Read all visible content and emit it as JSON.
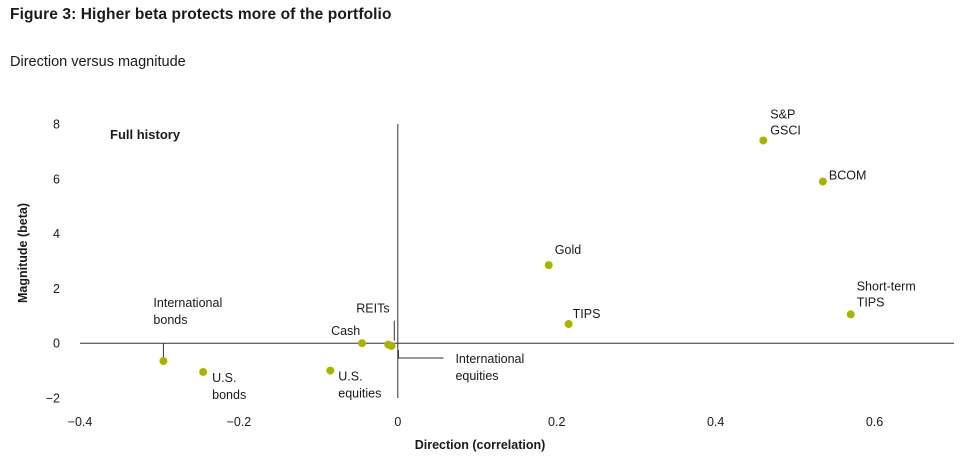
{
  "figure": {
    "title": "Figure 3: Higher beta protects more of the portfolio",
    "subtitle": "Direction versus magnitude"
  },
  "chart_data": {
    "type": "scatter",
    "panel_label": "Full history",
    "xlabel": "Direction (correlation)",
    "ylabel": "Magnitude (beta)",
    "xlim": [
      -0.4,
      0.7
    ],
    "ylim": [
      -2,
      8
    ],
    "xticks": [
      -0.4,
      -0.2,
      0,
      0.2,
      0.4,
      0.6
    ],
    "xtick_labels": [
      "−0.4",
      "−0.2",
      "0",
      "0.2",
      "0.4",
      "0.6"
    ],
    "yticks": [
      -2,
      0,
      2,
      4,
      6,
      8
    ],
    "ytick_labels": [
      "−2",
      "0",
      "2",
      "4",
      "6",
      "8"
    ],
    "point_color": "#a8b400",
    "points": [
      {
        "lines": [
          "S&P",
          "GSCI"
        ],
        "x": 0.46,
        "y": 7.4
      },
      {
        "lines": [
          "BCOM"
        ],
        "x": 0.535,
        "y": 5.9
      },
      {
        "lines": [
          "Gold"
        ],
        "x": 0.19,
        "y": 2.85
      },
      {
        "lines": [
          "TIPS"
        ],
        "x": 0.215,
        "y": 0.7
      },
      {
        "lines": [
          "Short-term",
          "TIPS"
        ],
        "x": 0.57,
        "y": 1.05
      },
      {
        "lines": [
          "International",
          "bonds"
        ],
        "x": -0.295,
        "y": -0.65
      },
      {
        "lines": [
          "U.S.",
          "bonds"
        ],
        "x": -0.245,
        "y": -1.05
      },
      {
        "lines": [
          "U.S.",
          "equities"
        ],
        "x": -0.085,
        "y": -1.0
      },
      {
        "lines": [
          "Cash"
        ],
        "x": -0.045,
        "y": 0.0
      },
      {
        "lines": [
          "REITs"
        ],
        "x": -0.012,
        "y": -0.05
      },
      {
        "lines": [
          "International",
          "equities"
        ],
        "x": -0.008,
        "y": -0.1
      }
    ]
  }
}
